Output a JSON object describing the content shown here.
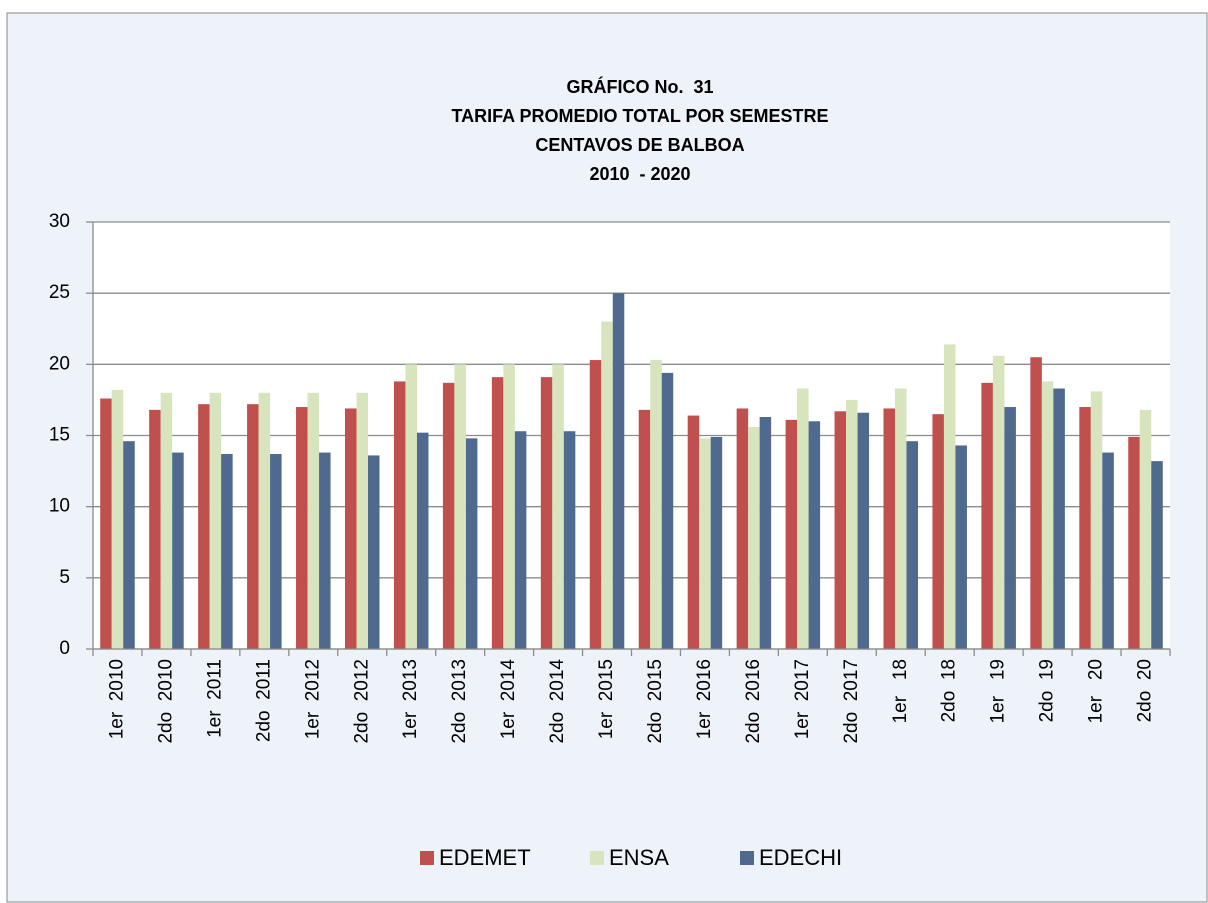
{
  "chart_data": {
    "type": "bar",
    "title": [
      "GRÁFICO No.  31",
      "TARIFA PROMEDIO TOTAL POR SEMESTRE",
      "CENTAVOS DE BALBOA",
      "2010  - 2020"
    ],
    "categories": [
      "1er  2010",
      "2do  2010",
      "1er  2011",
      "2do  2011",
      "1er  2012",
      "2do  2012",
      "1er  2013",
      "2do  2013",
      "1er  2014",
      "2do  2014",
      "1er  2015",
      "2do  2015",
      "1er  2016",
      "2do  2016",
      "1er  2017",
      "2do  2017",
      "1er   18",
      "2do  18",
      "1er   19",
      "2do  19",
      "1er   20",
      "2do  20"
    ],
    "series": [
      {
        "name": "EDEMET",
        "color": "#c0504d",
        "values": [
          17.6,
          16.8,
          17.2,
          17.2,
          17.0,
          16.9,
          18.8,
          18.7,
          19.1,
          19.1,
          20.3,
          16.8,
          16.4,
          16.9,
          16.1,
          16.7,
          16.9,
          16.5,
          18.7,
          20.5,
          17.0,
          14.9
        ]
      },
      {
        "name": "ENSA",
        "color": "#d7e4bd",
        "values": [
          18.2,
          18.0,
          18.0,
          18.0,
          18.0,
          18.0,
          20.0,
          20.0,
          20.0,
          20.0,
          23.0,
          20.3,
          14.8,
          15.6,
          18.3,
          17.5,
          18.3,
          21.4,
          20.6,
          18.8,
          18.1,
          16.8
        ]
      },
      {
        "name": "EDECHI",
        "color": "#4f6a8e",
        "values": [
          14.6,
          13.8,
          13.7,
          13.7,
          13.8,
          13.6,
          15.2,
          14.8,
          15.3,
          15.3,
          25.0,
          19.4,
          14.9,
          16.3,
          16.0,
          16.6,
          14.6,
          14.3,
          17.0,
          18.3,
          13.8,
          13.2
        ]
      }
    ],
    "ylim": [
      0,
      30
    ],
    "yticks": [
      0,
      5,
      10,
      15,
      20,
      25,
      30
    ],
    "grid": true,
    "legend": "bottom"
  }
}
